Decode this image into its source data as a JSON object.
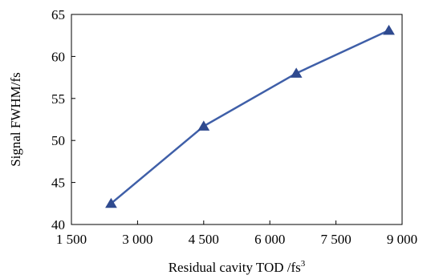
{
  "chart_data": {
    "type": "line",
    "x": [
      2400,
      4500,
      6600,
      8700
    ],
    "series": [
      {
        "values": [
          42.5,
          51.7,
          58.0,
          63.1
        ],
        "color": "#3f5fa8",
        "marker": "triangle",
        "marker_color": "#2f4a8f"
      }
    ],
    "xlim": [
      1500,
      9000
    ],
    "ylim": [
      40,
      65
    ],
    "xticks": [
      1500,
      3000,
      4500,
      6000,
      7500,
      9000
    ],
    "xtick_labels": [
      "1 500",
      "3 000",
      "4 500",
      "6 000",
      "7 500",
      "9 000"
    ],
    "yticks": [
      40,
      45,
      50,
      55,
      60,
      65
    ],
    "ytick_labels": [
      "40",
      "45",
      "50",
      "55",
      "60",
      "65"
    ],
    "xlabel": "Residual cavity TOD /fs",
    "xlabel_superscript": "3",
    "ylabel": "Signal FWHM/fs",
    "grid": false,
    "legend": "none"
  }
}
